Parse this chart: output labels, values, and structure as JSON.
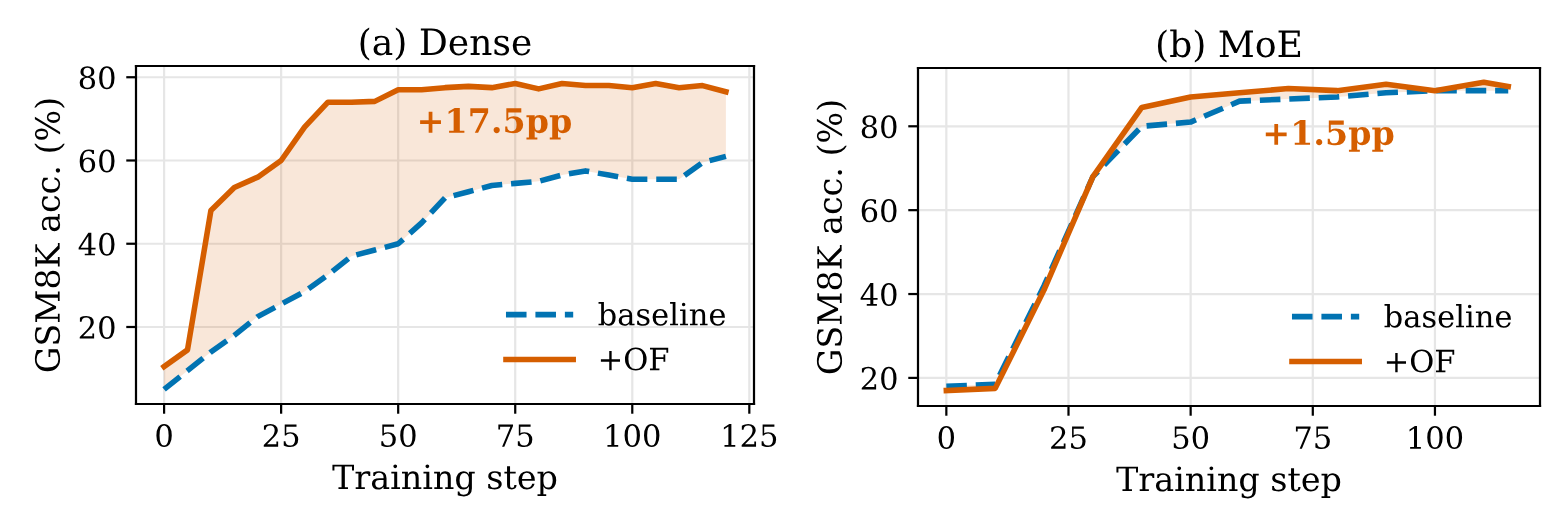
{
  "chart_data": [
    {
      "type": "line",
      "title": "(a) Dense",
      "xlabel": "Training step",
      "ylabel": "GSM8K acc. (%)",
      "xlim": [
        -6,
        126
      ],
      "xticks": [
        0,
        25,
        50,
        75,
        100,
        125
      ],
      "ylim": [
        1.5,
        82.7
      ],
      "yticks": [
        20,
        40,
        60,
        80
      ],
      "grid": true,
      "legend": "bottom right",
      "marker": "none",
      "annotations": [
        "+17.5pp"
      ],
      "x": [
        0,
        5,
        10,
        15,
        20,
        25,
        30,
        35,
        40,
        45,
        50,
        55,
        60,
        65,
        70,
        75,
        80,
        85,
        90,
        95,
        100,
        105,
        110,
        115,
        120
      ],
      "series": [
        {
          "name": "baseline",
          "color": "#0173b2",
          "line_style": "dashed",
          "values": [
            5,
            9.5,
            14,
            18,
            22.5,
            25.5,
            28.5,
            32.5,
            37,
            38.5,
            40,
            45,
            51,
            52.5,
            54,
            54.5,
            55,
            56.5,
            57.5,
            56.5,
            55.5,
            55.5,
            55.5,
            59.5,
            61
          ]
        },
        {
          "name": "+OF",
          "color": "#d55e00",
          "line_style": "solid",
          "values": [
            10.5,
            14.5,
            48,
            53.5,
            56,
            60,
            68,
            74,
            74,
            74.2,
            77,
            77,
            77.5,
            77.8,
            77.5,
            78.5,
            77.2,
            78.5,
            78,
            78,
            77.5,
            78.5,
            77.5,
            78,
            76.5
          ],
          "lower": [
            5,
            9.5,
            14,
            18,
            22.5,
            25.5,
            28.5,
            32.5,
            37,
            38.5,
            40,
            45,
            51,
            52.5,
            54,
            54.5,
            55,
            56.5,
            57.5,
            56.5,
            55.5,
            55.5,
            55.5,
            59.5,
            61
          ],
          "upper": [
            10.5,
            14.5,
            48,
            53.5,
            56,
            60,
            68,
            74,
            74,
            74.2,
            77,
            77,
            77.5,
            77.8,
            77.5,
            78.5,
            77.2,
            78.5,
            78,
            78,
            77.5,
            78.5,
            77.5,
            78,
            76.5
          ]
        }
      ]
    },
    {
      "type": "line",
      "title": "(b) MoE",
      "xlabel": "Training step",
      "ylabel": "GSM8K acc. (%)",
      "xlim": [
        -5.8,
        121.5
      ],
      "xticks": [
        0,
        25,
        50,
        75,
        100
      ],
      "ylim": [
        13.3,
        93.9
      ],
      "yticks": [
        20,
        40,
        60,
        80
      ],
      "grid": true,
      "legend": "bottom right",
      "marker": "none",
      "annotations": [
        "+1.5pp"
      ],
      "x": [
        0,
        10,
        20,
        30,
        40,
        50,
        60,
        70,
        80,
        90,
        100,
        110,
        115
      ],
      "series": [
        {
          "name": "baseline",
          "color": "#0173b2",
          "line_style": "dashed",
          "values": [
            18,
            18.5,
            42,
            68,
            80,
            81,
            86,
            86.5,
            87,
            88,
            88.5,
            88.5,
            88.5
          ]
        },
        {
          "name": "+OF",
          "color": "#d55e00",
          "line_style": "solid",
          "values": [
            17,
            17.5,
            41,
            68,
            84.5,
            87,
            88,
            89,
            88.5,
            90,
            88.5,
            90.5,
            89.5
          ],
          "lower": [
            18,
            18.5,
            42,
            68,
            80,
            81,
            86,
            86.5,
            87,
            88,
            88.5,
            88.5,
            88.5
          ],
          "upper": [
            17,
            17.5,
            41,
            68,
            84.5,
            87,
            88,
            89,
            88.5,
            90,
            88.5,
            90.5,
            89.5
          ]
        }
      ]
    }
  ]
}
